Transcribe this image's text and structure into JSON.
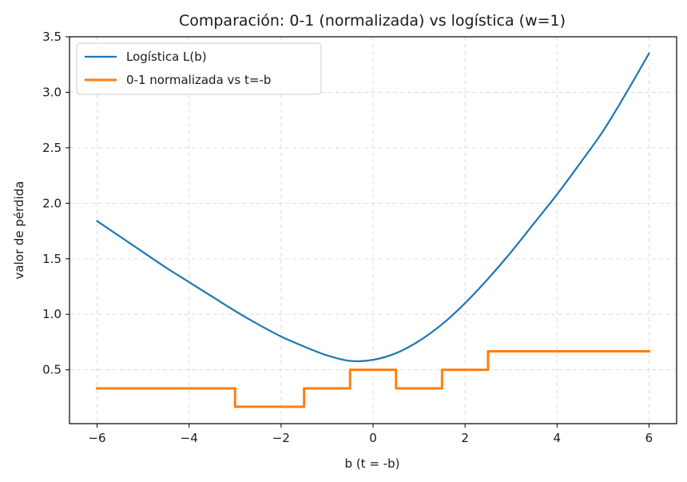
{
  "chart_data": {
    "type": "line",
    "title": "Comparación: 0-1 (normalizada) vs logística (w=1)",
    "xlabel": "b (t = -b)",
    "ylabel": "valor de pérdida",
    "xlim": [
      -6.6,
      6.6
    ],
    "ylim": [
      0.015,
      3.5
    ],
    "xticks": [
      -6,
      -4,
      -2,
      0,
      2,
      4,
      6
    ],
    "xtick_labels": [
      "−6",
      "−4",
      "−2",
      "0",
      "2",
      "4",
      "6"
    ],
    "yticks": [
      0.5,
      1.0,
      1.5,
      2.0,
      2.5,
      3.0,
      3.5
    ],
    "ytick_labels": [
      "0.5",
      "1.0",
      "1.5",
      "2.0",
      "2.5",
      "3.0",
      "3.5"
    ],
    "grid": true,
    "legend_position": "upper-left",
    "series": [
      {
        "name": "Logística L(b)",
        "color": "#1f77b4",
        "style": "smooth",
        "x": [
          -6,
          -5.5,
          -5,
          -4.5,
          -4,
          -3.5,
          -3,
          -2.5,
          -2,
          -1.5,
          -1,
          -0.5,
          0,
          0.5,
          1,
          1.5,
          2,
          2.5,
          3,
          3.5,
          4,
          4.5,
          5,
          5.5,
          6
        ],
        "y": [
          1.84,
          1.7,
          1.56,
          1.42,
          1.29,
          1.16,
          1.03,
          0.91,
          0.8,
          0.71,
          0.63,
          0.58,
          0.59,
          0.65,
          0.76,
          0.91,
          1.1,
          1.32,
          1.56,
          1.82,
          2.08,
          2.36,
          2.65,
          2.99,
          3.35
        ]
      },
      {
        "name": "0-1 normalizada vs t=-b",
        "color": "#ff7f0e",
        "style": "step",
        "x": [
          -6,
          -3,
          -3,
          -1.5,
          -1.5,
          -0.5,
          -0.5,
          0.5,
          0.5,
          1.5,
          1.5,
          2.5,
          2.5,
          6
        ],
        "y": [
          0.333,
          0.333,
          0.167,
          0.167,
          0.333,
          0.333,
          0.5,
          0.5,
          0.333,
          0.333,
          0.5,
          0.5,
          0.667,
          0.667
        ]
      }
    ]
  }
}
